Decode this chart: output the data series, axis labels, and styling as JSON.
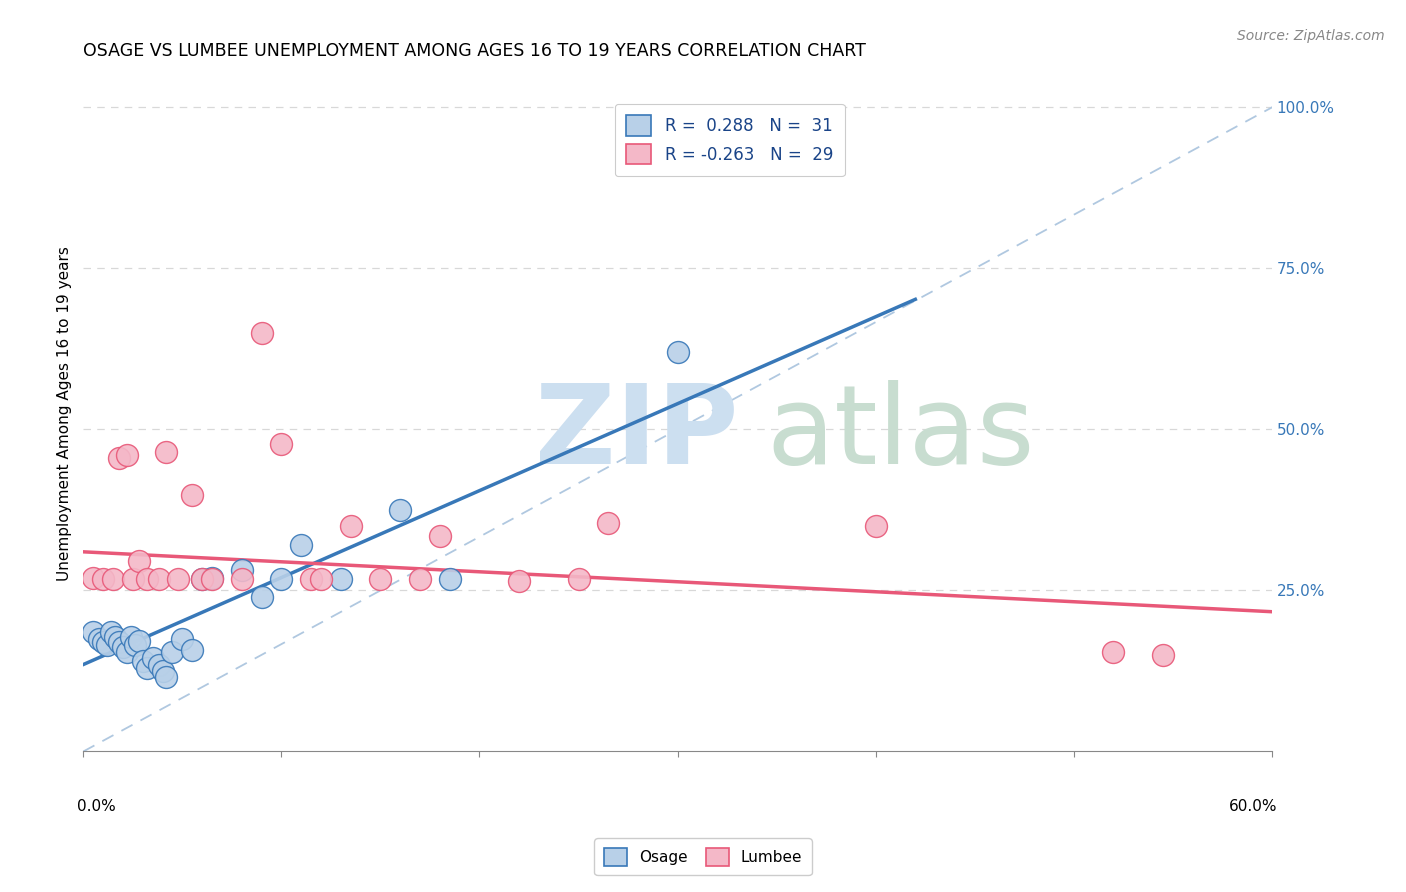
{
  "title": "OSAGE VS LUMBEE UNEMPLOYMENT AMONG AGES 16 TO 19 YEARS CORRELATION CHART",
  "source": "Source: ZipAtlas.com",
  "ylabel": "Unemployment Among Ages 16 to 19 years",
  "xlim": [
    0.0,
    0.6
  ],
  "ylim": [
    0.0,
    1.05
  ],
  "osage_color": "#b8d0e8",
  "lumbee_color": "#f4b8c8",
  "osage_line_color": "#3878b8",
  "lumbee_line_color": "#e85878",
  "diagonal_color": "#b0c8e0",
  "legend_r_osage": "R =  0.288",
  "legend_n_osage": "N =  31",
  "legend_r_lumbee": "R = -0.263",
  "legend_n_lumbee": "N =  29",
  "osage_x": [
    0.005,
    0.008,
    0.01,
    0.012,
    0.014,
    0.016,
    0.018,
    0.02,
    0.022,
    0.024,
    0.026,
    0.028,
    0.03,
    0.032,
    0.035,
    0.038,
    0.04,
    0.042,
    0.045,
    0.05,
    0.055,
    0.06,
    0.065,
    0.08,
    0.09,
    0.1,
    0.11,
    0.13,
    0.16,
    0.185,
    0.3
  ],
  "osage_y": [
    0.185,
    0.175,
    0.17,
    0.165,
    0.185,
    0.178,
    0.17,
    0.162,
    0.155,
    0.178,
    0.165,
    0.172,
    0.14,
    0.13,
    0.145,
    0.135,
    0.125,
    0.115,
    0.155,
    0.175,
    0.158,
    0.268,
    0.27,
    0.282,
    0.24,
    0.268,
    0.32,
    0.268,
    0.375,
    0.268,
    0.62
  ],
  "lumbee_x": [
    0.005,
    0.01,
    0.015,
    0.018,
    0.022,
    0.025,
    0.028,
    0.032,
    0.038,
    0.042,
    0.048,
    0.055,
    0.06,
    0.065,
    0.08,
    0.09,
    0.1,
    0.115,
    0.12,
    0.135,
    0.15,
    0.17,
    0.18,
    0.22,
    0.25,
    0.265,
    0.4,
    0.52,
    0.545
  ],
  "lumbee_y": [
    0.27,
    0.268,
    0.268,
    0.455,
    0.46,
    0.268,
    0.295,
    0.268,
    0.268,
    0.465,
    0.268,
    0.398,
    0.268,
    0.268,
    0.268,
    0.65,
    0.478,
    0.268,
    0.268,
    0.35,
    0.268,
    0.268,
    0.335,
    0.265,
    0.268,
    0.355,
    0.35,
    0.155,
    0.15
  ],
  "osage_regression": {
    "slope": 1.35,
    "intercept": 0.135
  },
  "lumbee_regression": {
    "slope": -0.155,
    "intercept": 0.31
  }
}
